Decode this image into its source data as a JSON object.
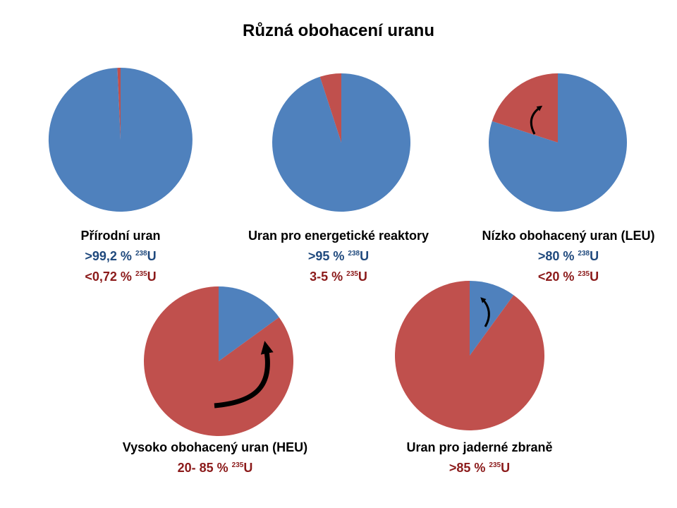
{
  "title": "Různá obohacení uranu",
  "colors": {
    "u238": "#4f81bd",
    "u235": "#c0504d",
    "arrow": "#000000"
  },
  "chart_data": [
    {
      "type": "pie",
      "title": "Přírodní uran",
      "labels": [
        "238U",
        "235U"
      ],
      "values": [
        99.28,
        0.72
      ],
      "legend": [
        {
          "prefix": ">99,2 % ",
          "sup": "238",
          "suffix": "U"
        },
        {
          "prefix": "<0,72 % ",
          "sup": "235",
          "suffix": "U"
        }
      ]
    },
    {
      "type": "pie",
      "title": "Uran pro energetické reaktory",
      "labels": [
        "238U",
        "235U"
      ],
      "values": [
        95,
        5
      ],
      "legend": [
        {
          "prefix": ">95 % ",
          "sup": "238",
          "suffix": "U"
        },
        {
          "prefix": "3-5 % ",
          "sup": "235",
          "suffix": "U"
        }
      ]
    },
    {
      "type": "pie",
      "title": "Nízko obohacený uran (LEU)",
      "labels": [
        "238U",
        "235U"
      ],
      "values": [
        80,
        20
      ],
      "legend": [
        {
          "prefix": ">80 % ",
          "sup": "238",
          "suffix": "U"
        },
        {
          "prefix": "<20 % ",
          "sup": "235",
          "suffix": "U"
        }
      ]
    },
    {
      "type": "pie",
      "title": "Vysoko obohacený uran (HEU)",
      "labels": [
        "238U",
        "235U"
      ],
      "values": [
        15,
        85
      ],
      "legend": [
        {
          "prefix": "20- 85 % ",
          "sup": "235",
          "suffix": "U"
        }
      ]
    },
    {
      "type": "pie",
      "title": "Uran pro jaderné zbraně",
      "labels": [
        "238U",
        "235U"
      ],
      "values": [
        10,
        90
      ],
      "legend": [
        {
          "prefix": ">85 % ",
          "sup": "235",
          "suffix": "U"
        }
      ]
    }
  ]
}
